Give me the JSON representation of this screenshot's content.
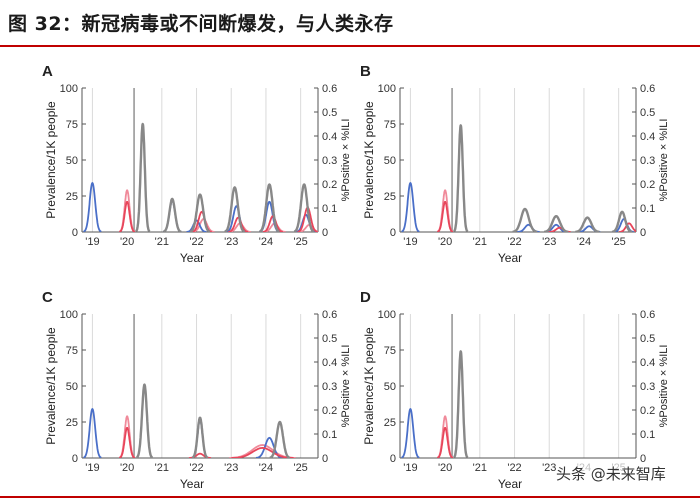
{
  "title": "图 32：新冠病毒或不间断爆发，与人类永存",
  "watermark": "头条 @未来智库",
  "colors": {
    "blue": "#4a6fc8",
    "red": "#e8455a",
    "pink": "#f08a9a",
    "purple": "#7a2a8a",
    "gray": "#888888"
  },
  "chart_data": [
    {
      "type": "line",
      "panel": "A",
      "xlabel": "Year",
      "ylabel": "Prevalence/1K people",
      "y2label": "%Positive × %ILI",
      "xticks": [
        "'19",
        "'20",
        "'21",
        "'22",
        "'23",
        "'24",
        "'25"
      ],
      "yticks": [
        "0",
        "25",
        "50",
        "75",
        "100"
      ],
      "ylim": [
        0,
        100
      ],
      "y2ticks": [
        "0",
        "0.1",
        "0.2",
        "0.3",
        "0.4",
        "0.5",
        "0.6"
      ],
      "y2lim": [
        0,
        0.6
      ],
      "xlim": [
        2018.7,
        2025.5
      ],
      "intervention": 2020.2,
      "peaks": [
        {
          "s": "blue",
          "x": 2019.0,
          "y": 34,
          "w": 0.08
        },
        {
          "s": "pink",
          "x": 2020.0,
          "y": 29,
          "w": 0.07
        },
        {
          "s": "red",
          "x": 2020.0,
          "y": 21,
          "w": 0.07
        },
        {
          "s": "gray",
          "x": 2020.45,
          "y": 75,
          "w": 0.06
        },
        {
          "s": "gray",
          "x": 2021.3,
          "y": 23,
          "w": 0.08
        },
        {
          "s": "blue",
          "x": 2021.3,
          "y": 22,
          "w": 0.08
        },
        {
          "s": "gray",
          "x": 2022.1,
          "y": 26,
          "w": 0.09
        },
        {
          "s": "red",
          "x": 2022.15,
          "y": 14,
          "w": 0.09
        },
        {
          "s": "pink",
          "x": 2022.2,
          "y": 9,
          "w": 0.1
        },
        {
          "s": "blue",
          "x": 2022.0,
          "y": 8,
          "w": 0.09
        },
        {
          "s": "gray",
          "x": 2023.1,
          "y": 31,
          "w": 0.09
        },
        {
          "s": "blue",
          "x": 2023.15,
          "y": 18,
          "w": 0.09
        },
        {
          "s": "red",
          "x": 2023.2,
          "y": 10,
          "w": 0.09
        },
        {
          "s": "pink",
          "x": 2023.25,
          "y": 6,
          "w": 0.1
        },
        {
          "s": "gray",
          "x": 2024.1,
          "y": 33,
          "w": 0.09
        },
        {
          "s": "blue",
          "x": 2024.1,
          "y": 21,
          "w": 0.09
        },
        {
          "s": "red",
          "x": 2024.2,
          "y": 11,
          "w": 0.09
        },
        {
          "s": "pink",
          "x": 2024.25,
          "y": 6,
          "w": 0.1
        },
        {
          "s": "gray",
          "x": 2025.1,
          "y": 33,
          "w": 0.09
        },
        {
          "s": "red",
          "x": 2025.2,
          "y": 17,
          "w": 0.09
        },
        {
          "s": "blue",
          "x": 2025.15,
          "y": 12,
          "w": 0.09
        },
        {
          "s": "pink",
          "x": 2025.25,
          "y": 5,
          "w": 0.1
        }
      ]
    },
    {
      "type": "line",
      "panel": "B",
      "xlabel": "Year",
      "ylabel": "Prevalence/1K people",
      "y2label": "%Positive × %ILI",
      "xticks": [
        "'19",
        "'20",
        "'21",
        "'22",
        "'23",
        "'24",
        "'25"
      ],
      "yticks": [
        "0",
        "25",
        "50",
        "75",
        "100"
      ],
      "ylim": [
        0,
        100
      ],
      "y2ticks": [
        "0",
        "0.1",
        "0.2",
        "0.3",
        "0.4",
        "0.5",
        "0.6"
      ],
      "y2lim": [
        0,
        0.6
      ],
      "xlim": [
        2018.7,
        2025.5
      ],
      "intervention": 2020.2,
      "peaks": [
        {
          "s": "blue",
          "x": 2019.0,
          "y": 34,
          "w": 0.08
        },
        {
          "s": "pink",
          "x": 2020.0,
          "y": 29,
          "w": 0.07
        },
        {
          "s": "red",
          "x": 2020.0,
          "y": 21,
          "w": 0.07
        },
        {
          "s": "gray",
          "x": 2020.45,
          "y": 74,
          "w": 0.06
        },
        {
          "s": "gray",
          "x": 2022.3,
          "y": 16,
          "w": 0.11
        },
        {
          "s": "blue",
          "x": 2022.4,
          "y": 5,
          "w": 0.1
        },
        {
          "s": "gray",
          "x": 2023.2,
          "y": 11,
          "w": 0.11
        },
        {
          "s": "blue",
          "x": 2023.2,
          "y": 5,
          "w": 0.1
        },
        {
          "s": "red",
          "x": 2023.3,
          "y": 3,
          "w": 0.1
        },
        {
          "s": "gray",
          "x": 2024.1,
          "y": 10,
          "w": 0.11
        },
        {
          "s": "blue",
          "x": 2024.15,
          "y": 4,
          "w": 0.1
        },
        {
          "s": "gray",
          "x": 2025.1,
          "y": 14,
          "w": 0.09
        },
        {
          "s": "blue",
          "x": 2025.15,
          "y": 9,
          "w": 0.09
        },
        {
          "s": "red",
          "x": 2025.3,
          "y": 6,
          "w": 0.09
        }
      ]
    },
    {
      "type": "line",
      "panel": "C",
      "xlabel": "Year",
      "ylabel": "Prevalence/1K people",
      "y2label": "%Positive × %ILI",
      "xticks": [
        "'19",
        "'20",
        "'21",
        "'22",
        "'23",
        "'24",
        "'25"
      ],
      "yticks": [
        "0",
        "25",
        "50",
        "75",
        "100"
      ],
      "ylim": [
        0,
        100
      ],
      "y2ticks": [
        "0",
        "0.1",
        "0.2",
        "0.3",
        "0.4",
        "0.5",
        "0.6"
      ],
      "y2lim": [
        0,
        0.6
      ],
      "xlim": [
        2018.7,
        2025.5
      ],
      "intervention": 2020.2,
      "peaks": [
        {
          "s": "blue",
          "x": 2019.0,
          "y": 34,
          "w": 0.08
        },
        {
          "s": "pink",
          "x": 2020.0,
          "y": 29,
          "w": 0.07
        },
        {
          "s": "red",
          "x": 2020.0,
          "y": 21,
          "w": 0.07
        },
        {
          "s": "gray",
          "x": 2020.5,
          "y": 51,
          "w": 0.07
        },
        {
          "s": "gray",
          "x": 2022.1,
          "y": 28,
          "w": 0.07
        },
        {
          "s": "blue",
          "x": 2022.1,
          "y": 27,
          "w": 0.07
        },
        {
          "s": "red",
          "x": 2022.1,
          "y": 3,
          "w": 0.1
        },
        {
          "s": "pink",
          "x": 2023.9,
          "y": 9,
          "w": 0.3
        },
        {
          "s": "red",
          "x": 2023.9,
          "y": 7,
          "w": 0.28
        },
        {
          "s": "blue",
          "x": 2024.1,
          "y": 14,
          "w": 0.12
        },
        {
          "s": "gray",
          "x": 2024.4,
          "y": 25,
          "w": 0.09
        }
      ]
    },
    {
      "type": "line",
      "panel": "D",
      "xlabel": "Year",
      "ylabel": "Prevalence/1K people",
      "y2label": "%Positive × %ILI",
      "xticks": [
        "'19",
        "'20",
        "'21",
        "'22",
        "'23",
        "'24",
        "'25"
      ],
      "yticks": [
        "0",
        "25",
        "50",
        "75",
        "100"
      ],
      "ylim": [
        0,
        100
      ],
      "y2ticks": [
        "0",
        "0.1",
        "0.2",
        "0.3",
        "0.4",
        "0.5",
        "0.6"
      ],
      "y2lim": [
        0,
        0.6
      ],
      "xlim": [
        2018.7,
        2025.5
      ],
      "intervention": 2020.2,
      "peaks": [
        {
          "s": "blue",
          "x": 2019.0,
          "y": 34,
          "w": 0.08
        },
        {
          "s": "pink",
          "x": 2020.0,
          "y": 29,
          "w": 0.07
        },
        {
          "s": "red",
          "x": 2020.0,
          "y": 21,
          "w": 0.07
        },
        {
          "s": "gray",
          "x": 2020.45,
          "y": 74,
          "w": 0.06
        }
      ]
    }
  ]
}
